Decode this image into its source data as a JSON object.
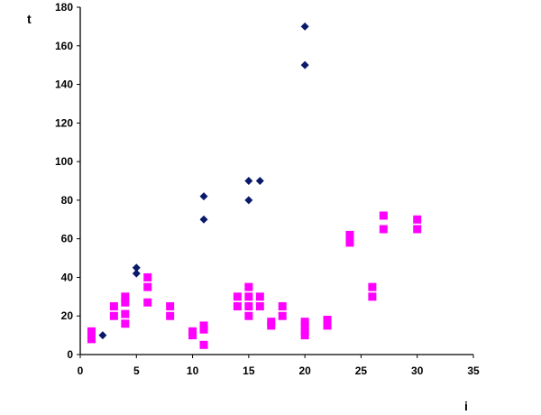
{
  "chart_data": {
    "type": "scatter",
    "title": "",
    "xlabel": "i",
    "ylabel": "t",
    "xlim": [
      0,
      35
    ],
    "ylim": [
      0,
      180
    ],
    "xticks": [
      0,
      5,
      10,
      15,
      20,
      25,
      30,
      35
    ],
    "yticks": [
      0,
      20,
      40,
      60,
      80,
      100,
      120,
      140,
      160,
      180
    ],
    "grid": false,
    "legend": "none",
    "series": [
      {
        "marker": "diamond",
        "color": "#0a1a6b",
        "points": [
          [
            2,
            10
          ],
          [
            5,
            42
          ],
          [
            5,
            45
          ],
          [
            11,
            70
          ],
          [
            11,
            82
          ],
          [
            15,
            80
          ],
          [
            15,
            90
          ],
          [
            16,
            90
          ],
          [
            20,
            150
          ],
          [
            20,
            170
          ]
        ]
      },
      {
        "marker": "square",
        "color": "#ff00ff",
        "points": [
          [
            1,
            8
          ],
          [
            1,
            12
          ],
          [
            3,
            20
          ],
          [
            3,
            25
          ],
          [
            4,
            16
          ],
          [
            4,
            21
          ],
          [
            4,
            27
          ],
          [
            4,
            30
          ],
          [
            6,
            27
          ],
          [
            6,
            35
          ],
          [
            6,
            40
          ],
          [
            8,
            20
          ],
          [
            8,
            25
          ],
          [
            10,
            10
          ],
          [
            10,
            12
          ],
          [
            11,
            5
          ],
          [
            11,
            13
          ],
          [
            11,
            15
          ],
          [
            14,
            25
          ],
          [
            14,
            30
          ],
          [
            15,
            20
          ],
          [
            15,
            25
          ],
          [
            15,
            30
          ],
          [
            15,
            35
          ],
          [
            16,
            25
          ],
          [
            16,
            30
          ],
          [
            17,
            15
          ],
          [
            17,
            17
          ],
          [
            18,
            20
          ],
          [
            18,
            25
          ],
          [
            20,
            10
          ],
          [
            20,
            12
          ],
          [
            20,
            15
          ],
          [
            20,
            17
          ],
          [
            22,
            15
          ],
          [
            22,
            18
          ],
          [
            24,
            58
          ],
          [
            24,
            62
          ],
          [
            26,
            30
          ],
          [
            26,
            35
          ],
          [
            27,
            65
          ],
          [
            27,
            72
          ],
          [
            30,
            65
          ],
          [
            30,
            70
          ]
        ]
      }
    ]
  }
}
